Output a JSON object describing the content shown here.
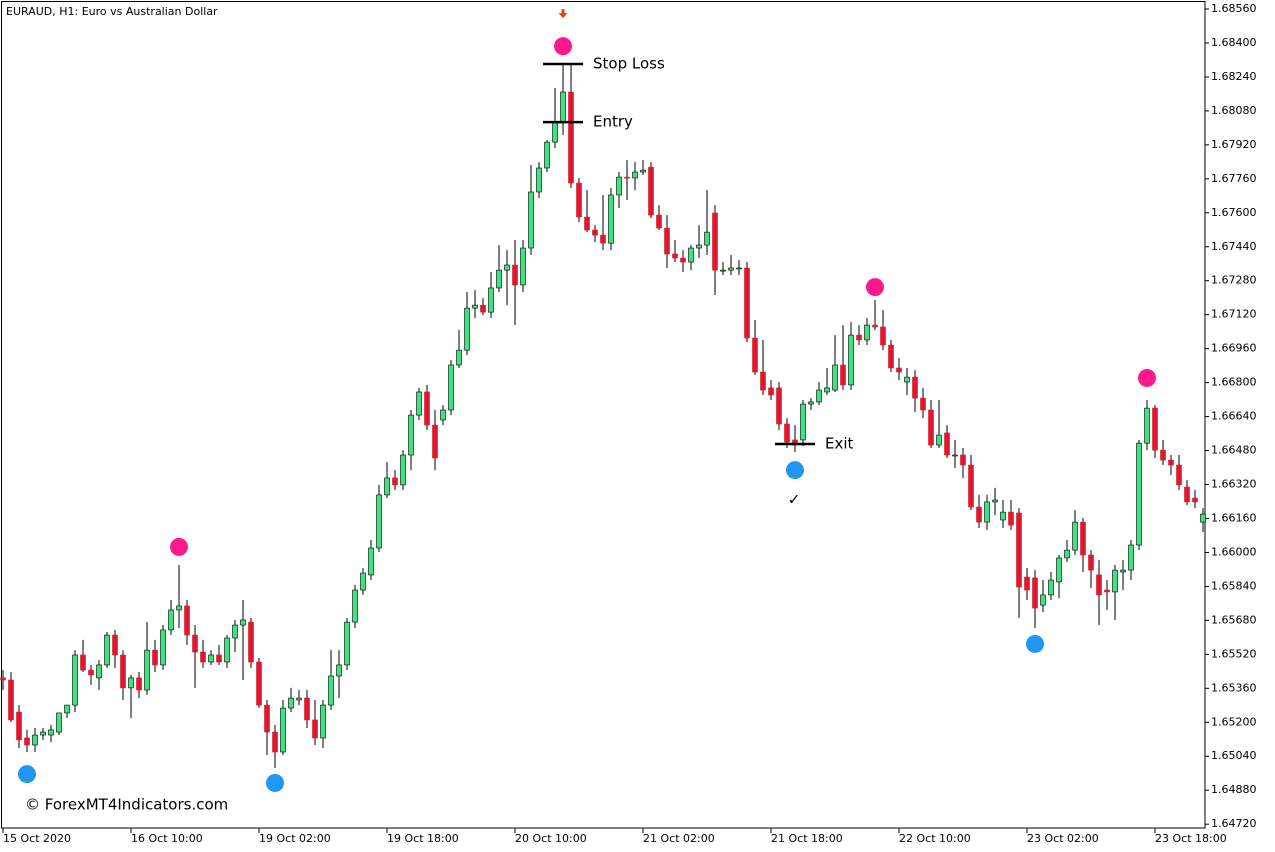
{
  "chart_data": {
    "type": "candlestick",
    "title": "EURAUD, H1:  Euro vs Australian Dollar",
    "watermark": "© ForexMT4Indicators.com",
    "check_mark": "✓",
    "up_color": "#3ee27f",
    "down_color": "#dc1a2e",
    "ylim": [
      1.64702,
      1.68593
    ],
    "yticks": [
      {
        "value": 1.6856,
        "label": "1.68560"
      },
      {
        "value": 1.684,
        "label": "1.68400"
      },
      {
        "value": 1.6824,
        "label": "1.68240"
      },
      {
        "value": 1.6808,
        "label": "1.68080"
      },
      {
        "value": 1.6792,
        "label": "1.67920"
      },
      {
        "value": 1.6776,
        "label": "1.67760"
      },
      {
        "value": 1.676,
        "label": "1.67600"
      },
      {
        "value": 1.6744,
        "label": "1.67440"
      },
      {
        "value": 1.6728,
        "label": "1.67280"
      },
      {
        "value": 1.6712,
        "label": "1.67120"
      },
      {
        "value": 1.6696,
        "label": "1.66960"
      },
      {
        "value": 1.668,
        "label": "1.66800"
      },
      {
        "value": 1.6664,
        "label": "1.66640"
      },
      {
        "value": 1.6648,
        "label": "1.66480"
      },
      {
        "value": 1.6632,
        "label": "1.66320"
      },
      {
        "value": 1.6616,
        "label": "1.66160"
      },
      {
        "value": 1.66,
        "label": "1.66000"
      },
      {
        "value": 1.6584,
        "label": "1.65840"
      },
      {
        "value": 1.6568,
        "label": "1.65680"
      },
      {
        "value": 1.6552,
        "label": "1.65520"
      },
      {
        "value": 1.6536,
        "label": "1.65360"
      },
      {
        "value": 1.652,
        "label": "1.65200"
      },
      {
        "value": 1.6504,
        "label": "1.65040"
      },
      {
        "value": 1.6488,
        "label": "1.64880"
      },
      {
        "value": 1.6472,
        "label": "1.64720"
      }
    ],
    "categories": [
      "15 Oct 2020",
      null,
      null,
      null,
      null,
      null,
      null,
      null,
      null,
      null,
      null,
      null,
      null,
      null,
      null,
      null,
      "16 Oct 10:00",
      null,
      null,
      null,
      null,
      null,
      null,
      null,
      null,
      null,
      null,
      null,
      null,
      null,
      null,
      null,
      "19 Oct 02:00",
      null,
      null,
      null,
      null,
      null,
      null,
      null,
      null,
      null,
      null,
      null,
      null,
      null,
      null,
      null,
      "19 Oct 18:00",
      null,
      null,
      null,
      null,
      null,
      null,
      null,
      null,
      null,
      null,
      null,
      null,
      null,
      null,
      null,
      "20 Oct 10:00",
      null,
      null,
      null,
      null,
      null,
      null,
      null,
      null,
      null,
      null,
      null,
      null,
      null,
      null,
      null,
      "21 Oct 02:00",
      null,
      null,
      null,
      null,
      null,
      null,
      null,
      null,
      null,
      null,
      null,
      null,
      null,
      null,
      null,
      "21 Oct 18:00",
      null,
      null,
      null,
      null,
      null,
      null,
      null,
      null,
      null,
      null,
      null,
      null,
      null,
      null,
      null,
      "22 Oct 10:00",
      null,
      null,
      null,
      null,
      null,
      null,
      null,
      null,
      null,
      null,
      null,
      null,
      null,
      null,
      null,
      "23 Oct 02:00",
      null,
      null,
      null,
      null,
      null,
      null,
      null,
      null,
      null,
      null,
      null,
      null,
      null,
      null,
      null,
      "23 Oct 18:00",
      null,
      null,
      null,
      null,
      null,
      null
    ],
    "open": [
      1.65409,
      1.65399,
      1.65248,
      1.65126,
      1.65093,
      1.6514,
      1.6514,
      1.65154,
      1.65244,
      1.65281,
      1.65517,
      1.65446,
      1.65409,
      1.6547,
      1.65611,
      1.65517,
      1.65362,
      1.65409,
      1.65352,
      1.6554,
      1.6547,
      1.65635,
      1.65729,
      1.65748,
      1.65611,
      1.65531,
      1.65484,
      1.65517,
      1.65484,
      1.65597,
      1.65658,
      1.65672,
      1.65484,
      1.65281,
      1.65154,
      1.6506,
      1.65267,
      1.65305,
      1.65314,
      1.65211,
      1.65126,
      1.65281,
      1.65418,
      1.6547,
      1.65672,
      1.65823,
      1.65894,
      1.66021,
      1.66271,
      1.66351,
      1.66318,
      1.66459,
      1.66647,
      1.66756,
      1.666,
      1.66624,
      1.66671,
      1.66883,
      1.66953,
      1.67151,
      1.67165,
      1.67132,
      1.67246,
      1.6733,
      1.67354,
      1.6726,
      1.67434,
      1.67698,
      1.67811,
      1.67933,
      1.68027,
      1.68169,
      1.6774,
      1.6758,
      1.67519,
      1.67495,
      1.67457,
      1.67684,
      1.67768,
      1.67764,
      1.67792,
      1.67815,
      1.67589,
      1.67528,
      1.67406,
      1.67387,
      1.67368,
      1.67434,
      1.67448,
      1.67599,
      1.6733,
      1.6733,
      1.6734,
      1.6734,
      1.6701,
      1.6685,
      1.66775,
      1.66775,
      1.66605,
      1.6653,
      1.6653,
      1.66699,
      1.66709,
      1.66756,
      1.66765,
      1.66883,
      1.66789,
      1.67024,
      1.67001,
      1.67071,
      1.67062,
      1.66977,
      1.66869,
      1.66803,
      1.66826,
      1.66727,
      1.66671,
      1.66506,
      1.66563,
      1.66459,
      1.66459,
      1.66412,
      1.66214,
      1.66143,
      1.66238,
      1.66153,
      1.6619,
      1.66186,
      1.65884,
      1.6588,
      1.65752,
      1.658,
      1.65861,
      1.65974,
      1.66011,
      1.66143,
      1.65988,
      1.65894,
      1.65823,
      1.65814,
      1.65908,
      1.65917,
      1.66035,
      1.66515,
      1.6668,
      1.66482,
      1.66435,
      1.66412,
      1.66308,
      1.66256,
      1.66143
    ],
    "high": [
      1.65446,
      1.65437,
      1.65281,
      1.65164,
      1.65173,
      1.65173,
      1.65187,
      1.6522,
      1.65281,
      1.6554,
      1.65588,
      1.6547,
      1.65493,
      1.65625,
      1.65635,
      1.6554,
      1.65423,
      1.65437,
      1.65672,
      1.65588,
      1.65658,
      1.65776,
      1.65941,
      1.65776,
      1.65658,
      1.65588,
      1.6554,
      1.65564,
      1.65611,
      1.65682,
      1.65776,
      1.65691,
      1.65503,
      1.65305,
      1.65187,
      1.65305,
      1.65362,
      1.65352,
      1.65352,
      1.65305,
      1.65305,
      1.6554,
      1.6554,
      1.65691,
      1.65847,
      1.65927,
      1.66059,
      1.66318,
      1.66426,
      1.66388,
      1.66482,
      1.66671,
      1.66775,
      1.66789,
      1.66671,
      1.66694,
      1.66906,
      1.67048,
      1.67227,
      1.67236,
      1.67198,
      1.67321,
      1.67448,
      1.67424,
      1.67472,
      1.67472,
      1.67825,
      1.67839,
      1.67943,
      1.68188,
      1.68305,
      1.68296,
      1.67764,
      1.67707,
      1.67542,
      1.67684,
      1.67717,
      1.67792,
      1.67848,
      1.67839,
      1.67848,
      1.67839,
      1.67636,
      1.67589,
      1.67472,
      1.67424,
      1.67448,
      1.67542,
      1.67707,
      1.67636,
      1.67368,
      1.67401,
      1.67377,
      1.67368,
      1.67095,
      1.67001,
      1.66812,
      1.66803,
      1.66633,
      1.666,
      1.66718,
      1.66727,
      1.66803,
      1.66869,
      1.67024,
      1.67071,
      1.67085,
      1.67071,
      1.67104,
      1.67189,
      1.67142,
      1.67001,
      1.66916,
      1.66869,
      1.66859,
      1.66775,
      1.66718,
      1.66718,
      1.666,
      1.6653,
      1.66492,
      1.66459,
      1.66271,
      1.66271,
      1.66304,
      1.66247,
      1.66247,
      1.66209,
      1.65927,
      1.65917,
      1.6587,
      1.65908,
      1.65988,
      1.66059,
      1.662,
      1.66162,
      1.66011,
      1.65964,
      1.6587,
      1.65941,
      1.65964,
      1.66059,
      1.6653,
      1.66718,
      1.66694,
      1.6653,
      1.66459,
      1.66459,
      1.66341,
      1.66294,
      1.66209
    ],
    "low": [
      1.65352,
      1.65201,
      1.65079,
      1.6506,
      1.6506,
      1.65117,
      1.65107,
      1.6514,
      1.6522,
      1.65248,
      1.65437,
      1.65376,
      1.65352,
      1.65456,
      1.65456,
      1.65305,
      1.6522,
      1.65314,
      1.65329,
      1.65437,
      1.65446,
      1.65611,
      1.65644,
      1.65564,
      1.65362,
      1.65456,
      1.6547,
      1.6547,
      1.65456,
      1.65531,
      1.65399,
      1.65456,
      1.65267,
      1.65046,
      1.64985,
      1.65046,
      1.65248,
      1.65281,
      1.65173,
      1.65093,
      1.65079,
      1.65258,
      1.65314,
      1.65446,
      1.65644,
      1.658,
      1.6587,
      1.66002,
      1.66256,
      1.66294,
      1.66294,
      1.66388,
      1.66624,
      1.66577,
      1.66388,
      1.666,
      1.66647,
      1.66869,
      1.6693,
      1.67104,
      1.67118,
      1.67104,
      1.67227,
      1.67165,
      1.67071,
      1.67227,
      1.67401,
      1.67669,
      1.67792,
      1.67905,
      1.67966,
      1.67717,
      1.67556,
      1.67509,
      1.67462,
      1.67424,
      1.67424,
      1.67622,
      1.6766,
      1.67707,
      1.67778,
      1.67575,
      1.67519,
      1.6734,
      1.67368,
      1.67321,
      1.6733,
      1.67387,
      1.67401,
      1.67213,
      1.67307,
      1.67307,
      1.67307,
      1.66991,
      1.66836,
      1.66742,
      1.66718,
      1.66577,
      1.66492,
      1.66473,
      1.66501,
      1.66671,
      1.66694,
      1.66742,
      1.66756,
      1.66765,
      1.66765,
      1.66977,
      1.66977,
      1.67048,
      1.66953,
      1.6685,
      1.66812,
      1.66742,
      1.66661,
      1.66633,
      1.66492,
      1.66492,
      1.66445,
      1.66398,
      1.66351,
      1.662,
      1.66115,
      1.66106,
      1.66176,
      1.66115,
      1.66106,
      1.65691,
      1.65776,
      1.65644,
      1.65719,
      1.65776,
      1.65785,
      1.65955,
      1.65988,
      1.65908,
      1.65833,
      1.65658,
      1.65729,
      1.65682,
      1.65823,
      1.6587,
      1.66011,
      1.66482,
      1.66445,
      1.66412,
      1.66365,
      1.66294,
      1.66223,
      1.66209,
      1.66096
    ],
    "close": [
      1.65399,
      1.65211,
      1.65117,
      1.65093,
      1.6514,
      1.65154,
      1.65164,
      1.65244,
      1.65281,
      1.65517,
      1.65446,
      1.65423,
      1.6547,
      1.65611,
      1.65517,
      1.65362,
      1.65409,
      1.65352,
      1.6554,
      1.6547,
      1.65635,
      1.65729,
      1.65748,
      1.65611,
      1.65531,
      1.65484,
      1.65517,
      1.65484,
      1.65597,
      1.65658,
      1.65682,
      1.65484,
      1.65281,
      1.65154,
      1.6506,
      1.65267,
      1.65314,
      1.65314,
      1.65211,
      1.65126,
      1.65281,
      1.65418,
      1.6547,
      1.65672,
      1.65823,
      1.65903,
      1.66021,
      1.66271,
      1.66351,
      1.66318,
      1.66459,
      1.66647,
      1.66756,
      1.666,
      1.66445,
      1.66671,
      1.66883,
      1.66953,
      1.67151,
      1.67165,
      1.67132,
      1.67246,
      1.6733,
      1.67354,
      1.6726,
      1.67434,
      1.67698,
      1.67811,
      1.67933,
      1.68027,
      1.68169,
      1.6774,
      1.6758,
      1.67519,
      1.67495,
      1.67457,
      1.67684,
      1.67768,
      1.67764,
      1.67792,
      1.67801,
      1.67589,
      1.67528,
      1.67406,
      1.67387,
      1.67368,
      1.67434,
      1.67448,
      1.67509,
      1.6733,
      1.6733,
      1.6734,
      1.6734,
      1.6701,
      1.6685,
      1.66765,
      1.66742,
      1.66605,
      1.6652,
      1.66506,
      1.66699,
      1.66709,
      1.66765,
      1.66775,
      1.66883,
      1.66789,
      1.67024,
      1.67001,
      1.67071,
      1.67062,
      1.66977,
      1.66869,
      1.6685,
      1.66826,
      1.66727,
      1.66671,
      1.66506,
      1.66553,
      1.66459,
      1.66459,
      1.66412,
      1.66214,
      1.66143,
      1.66238,
      1.66247,
      1.6619,
      1.66129,
      1.65837,
      1.65823,
      1.65738,
      1.658,
      1.6587,
      1.65974,
      1.66011,
      1.66143,
      1.65988,
      1.65917,
      1.658,
      1.65814,
      1.65917,
      1.65917,
      1.66035,
      1.66515,
      1.6668,
      1.66482,
      1.66435,
      1.66412,
      1.66318,
      1.66238,
      1.66238,
      1.66181
    ],
    "markers": [
      {
        "color": "#ff1a8c",
        "points": [
          {
            "at": 22,
            "value": 1.66026
          },
          {
            "at": 70,
            "value": 1.68385
          },
          {
            "at": 109,
            "value": 1.6725
          },
          {
            "at": 143,
            "value": 1.66822
          }
        ]
      },
      {
        "color": "#2196f3",
        "points": [
          {
            "at": 3,
            "value": 1.64956
          },
          {
            "at": 34,
            "value": 1.64914
          },
          {
            "at": 99,
            "value": 1.66388
          },
          {
            "at": 129,
            "value": 1.65569
          }
        ]
      }
    ],
    "arrow": {
      "at": 70,
      "value": 1.68536,
      "color": "#e0401c"
    },
    "levels": [
      {
        "label": "Stop Loss",
        "value": 1.68301,
        "from": 68,
        "to": 72
      },
      {
        "label": "Entry",
        "value": 1.68027,
        "from": 68,
        "to": 72
      },
      {
        "label": "Exit",
        "value": 1.66511,
        "from": 97,
        "to": 101
      }
    ]
  }
}
